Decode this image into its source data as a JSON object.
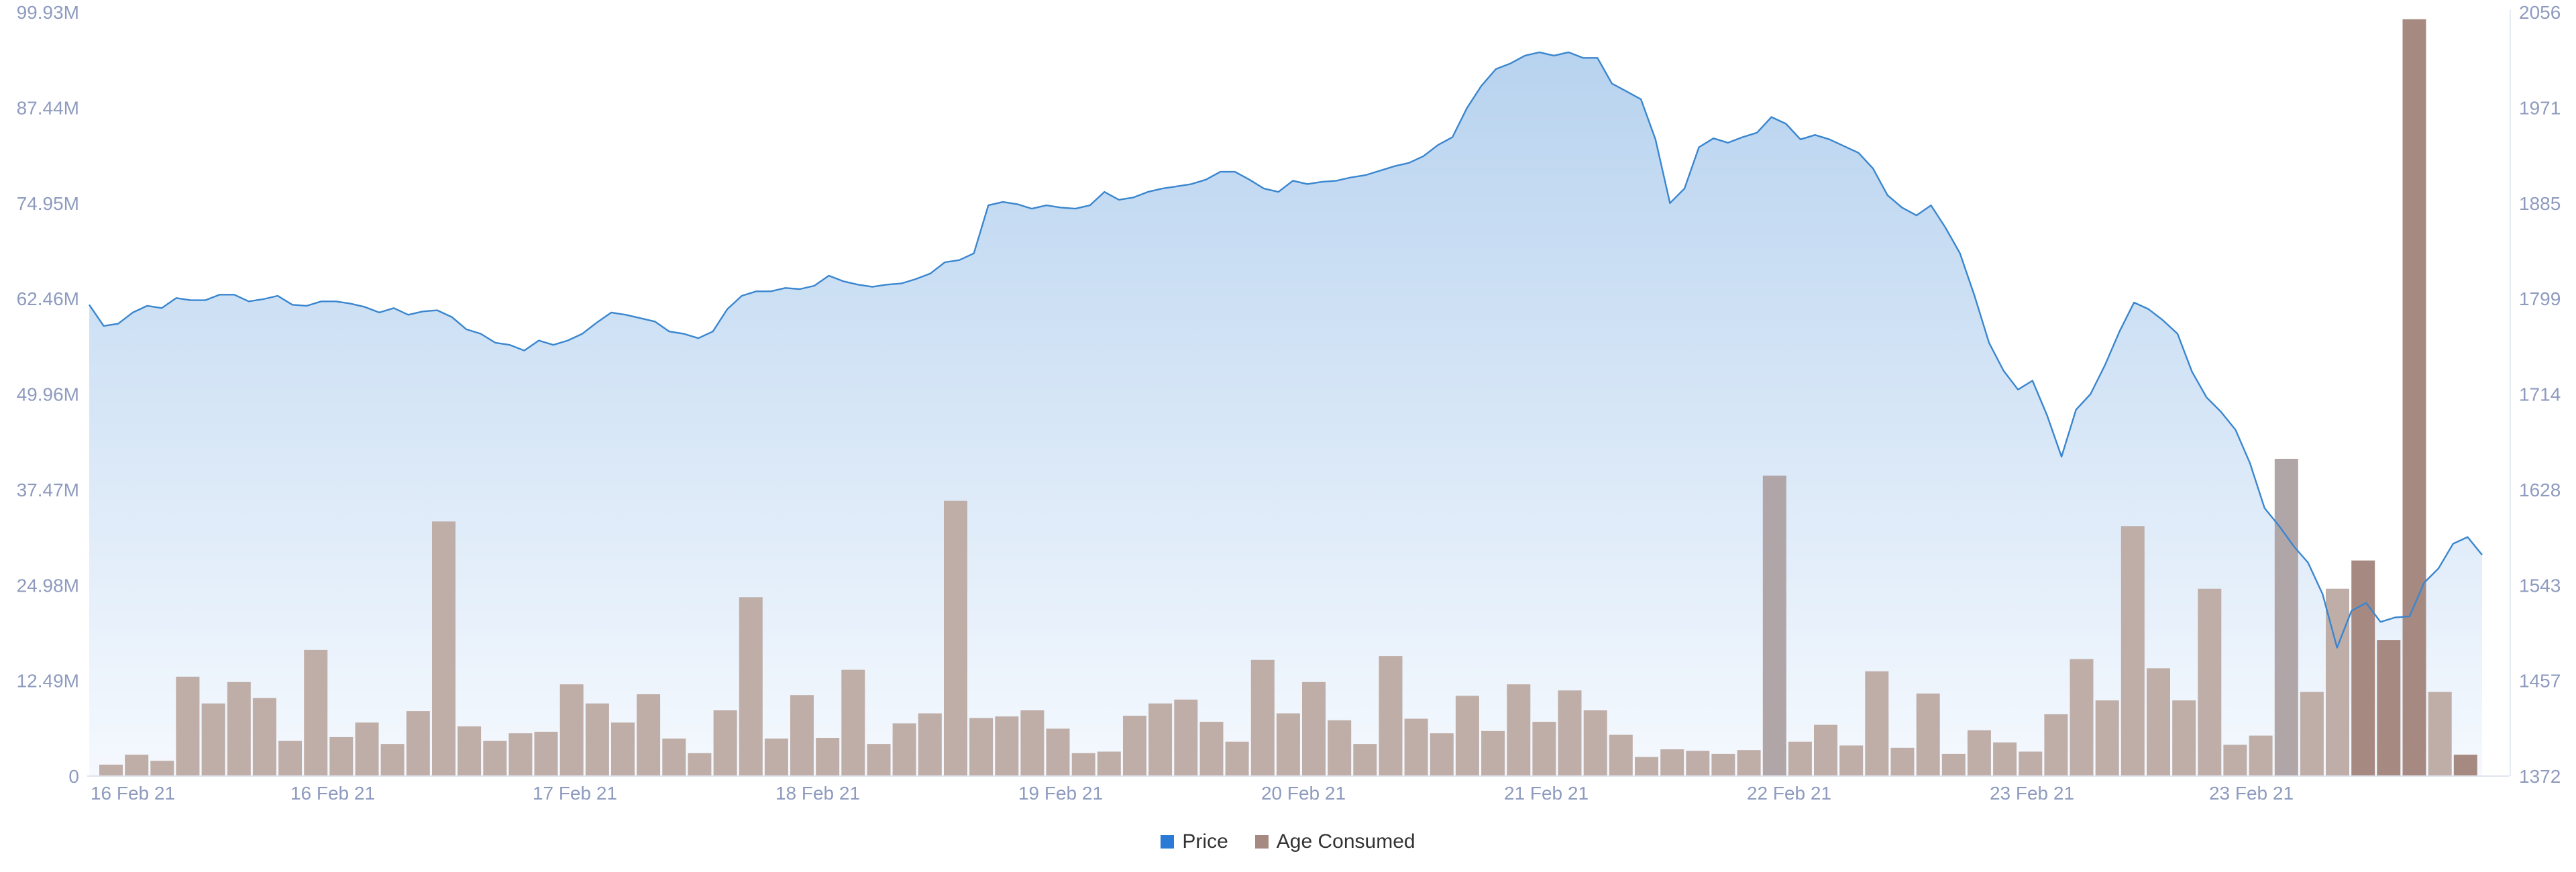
{
  "chart_data": {
    "type": "bar",
    "title": "",
    "legend": {
      "placement": "bottom-center",
      "items": [
        {
          "label": "Price",
          "color": "#2b7bd6"
        },
        {
          "label": "Age Consumed",
          "color": "#a68a82"
        }
      ]
    },
    "colors": {
      "price_line": "#3a86cf",
      "price_fill_top": "#b8d3ef",
      "price_fill_bottom": "#f5f9fe",
      "bar_default": "#bfaea8",
      "bar_grey": "#b0a6a8",
      "bar_highlight": "#a68a82",
      "axis_text": "#8e9bbf"
    },
    "x_tick_labels": [
      "16 Feb 21",
      "16 Feb 21",
      "17 Feb 21",
      "18 Feb 21",
      "19 Feb 21",
      "20 Feb 21",
      "21 Feb 21",
      "22 Feb 21",
      "23 Feb 21",
      "23 Feb 21"
    ],
    "y_left": {
      "labels": [
        "0",
        "12.49M",
        "24.98M",
        "37.47M",
        "49.96M",
        "62.46M",
        "74.95M",
        "87.44M",
        "99.93M"
      ],
      "range": [
        0,
        99.93
      ]
    },
    "y_right": {
      "labels": [
        "1372",
        "1457",
        "1543",
        "1628",
        "1714",
        "1799",
        "1885",
        "1971",
        "2056"
      ],
      "range": [
        1372,
        2056
      ]
    },
    "series": [
      {
        "name": "Age Consumed",
        "axis": "left",
        "unit": "M",
        "values": [
          1.5,
          2.8,
          2,
          13,
          9.5,
          12.3,
          10.2,
          4.6,
          16.5,
          5.1,
          7,
          4.2,
          8.5,
          33.3,
          6.5,
          4.6,
          5.6,
          5.8,
          12,
          9.5,
          7,
          10.7,
          4.9,
          3,
          8.6,
          23.4,
          4.9,
          10.6,
          5,
          13.9,
          4.2,
          6.9,
          8.2,
          36,
          7.6,
          7.8,
          8.6,
          6.2,
          3,
          3.2,
          7.9,
          9.5,
          10,
          7.1,
          4.5,
          15.2,
          8.2,
          12.3,
          7.3,
          4.2,
          15.7,
          7.5,
          5.6,
          10.5,
          5.9,
          12,
          7.1,
          11.2,
          8.6,
          5.4,
          2.5,
          3.5,
          3.3,
          2.9,
          3.4,
          39.3,
          4.5,
          6.7,
          4,
          13.7,
          3.7,
          10.8,
          2.9,
          6,
          4.4,
          3.2,
          8.1,
          15.3,
          9.9,
          32.7,
          14.1,
          9.9,
          24.5,
          4.1,
          5.3,
          41.5,
          11,
          24.5,
          28.2,
          17.8,
          99,
          11,
          2.8
        ],
        "highlight_indices": [
          88,
          89,
          90,
          92
        ],
        "grey_indices": [
          65,
          85
        ]
      },
      {
        "name": "Price",
        "axis": "right",
        "x_range": [
          "16 Feb 21",
          "23 Feb 21"
        ],
        "values": [
          1794,
          1775,
          1777,
          1787,
          1793,
          1791,
          1800,
          1798,
          1798,
          1803,
          1803,
          1797,
          1799,
          1802,
          1794,
          1793,
          1797,
          1797,
          1795,
          1792,
          1787,
          1791,
          1785,
          1788,
          1789,
          1783,
          1772,
          1768,
          1760,
          1758,
          1753,
          1762,
          1758,
          1762,
          1768,
          1778,
          1787,
          1785,
          1782,
          1779,
          1770,
          1768,
          1764,
          1770,
          1790,
          1802,
          1806,
          1806,
          1809,
          1808,
          1811,
          1820,
          1815,
          1812,
          1810,
          1812,
          1813,
          1817,
          1822,
          1832,
          1834,
          1840,
          1883,
          1886,
          1884,
          1880,
          1883,
          1881,
          1880,
          1883,
          1895,
          1888,
          1890,
          1895,
          1898,
          1900,
          1902,
          1906,
          1913,
          1913,
          1906,
          1898,
          1895,
          1905,
          1902,
          1904,
          1905,
          1908,
          1910,
          1914,
          1918,
          1921,
          1927,
          1937,
          1944,
          1970,
          1990,
          2005,
          2010,
          2017,
          2020,
          2017,
          2020,
          2015,
          2015,
          1992,
          1985,
          1978,
          1942,
          1885,
          1898,
          1935,
          1943,
          1939,
          1944,
          1948,
          1962,
          1956,
          1942,
          1946,
          1942,
          1936,
          1930,
          1916,
          1892,
          1881,
          1874,
          1883,
          1863,
          1840,
          1802,
          1760,
          1735,
          1718,
          1726,
          1695,
          1658,
          1700,
          1714,
          1740,
          1770,
          1796,
          1790,
          1780,
          1768,
          1734,
          1711,
          1698,
          1682,
          1652,
          1612,
          1596,
          1578,
          1563,
          1535,
          1487,
          1520,
          1527,
          1510,
          1514,
          1515,
          1545,
          1558,
          1580,
          1586,
          1570
        ]
      }
    ]
  }
}
